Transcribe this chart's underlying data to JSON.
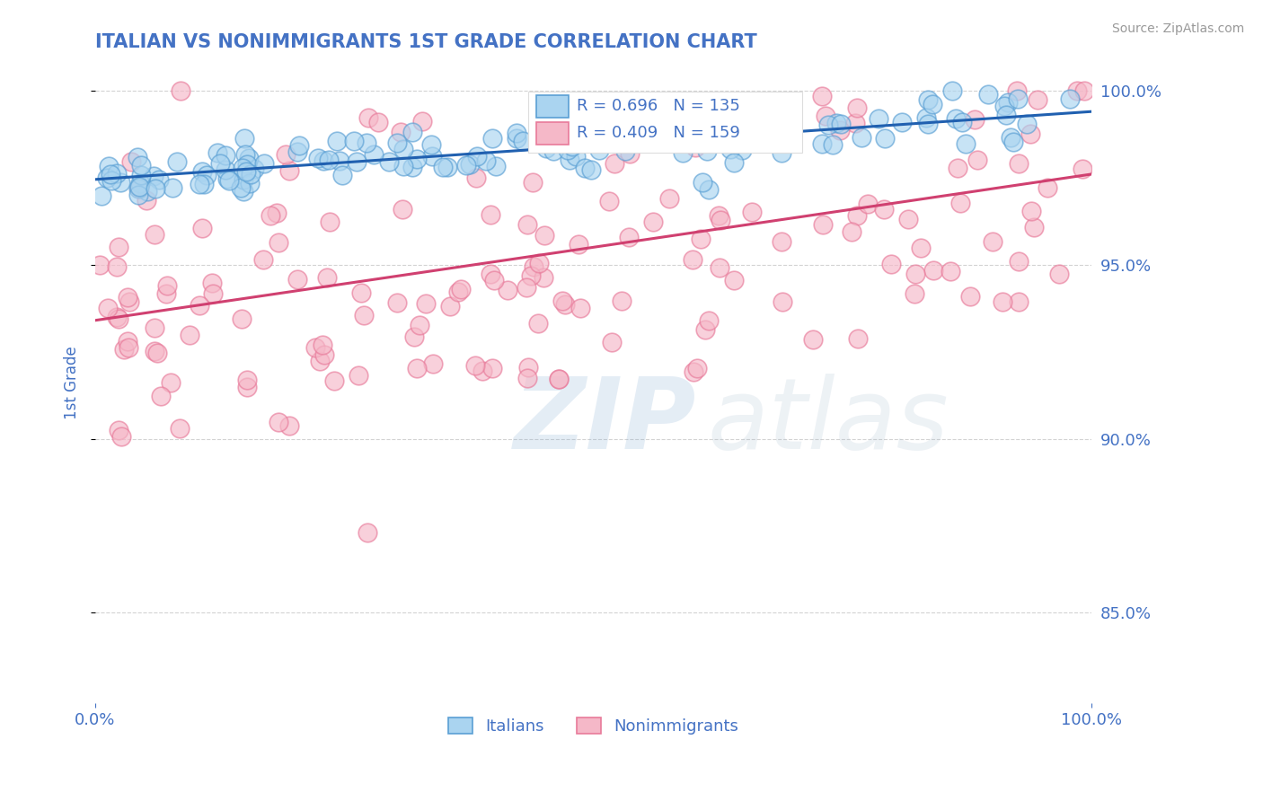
{
  "title": "ITALIAN VS NONIMMIGRANTS 1ST GRADE CORRELATION CHART",
  "source_text": "Source: ZipAtlas.com",
  "ylabel": "1st Grade",
  "watermark_zip": "ZIP",
  "watermark_atlas": "atlas",
  "background_color": "#ffffff",
  "title_color": "#4472c4",
  "tick_color": "#4472c4",
  "grid_color": "#c8c8c8",
  "xlim": [
    0.0,
    1.0
  ],
  "ylim": [
    0.824,
    1.008
  ],
  "yticks": [
    0.85,
    0.9,
    0.95,
    1.0
  ],
  "ytick_labels": [
    "85.0%",
    "90.0%",
    "95.0%",
    "100.0%"
  ],
  "xticks": [
    0.0,
    1.0
  ],
  "xtick_labels": [
    "0.0%",
    "100.0%"
  ],
  "legend_R_italian": "R = 0.696",
  "legend_N_italian": "N = 135",
  "legend_R_nonimm": "R = 0.409",
  "legend_N_nonimm": "N = 159",
  "italian_edge_color": "#5a9fd4",
  "italian_face_color": "#aad4f0",
  "nonimm_edge_color": "#e87a9a",
  "nonimm_face_color": "#f5b8c8",
  "italian_line_color": "#2060b0",
  "nonimm_line_color": "#d04070",
  "n_italian": 135,
  "n_nonimm": 159,
  "italian_trend_y0": 0.9745,
  "italian_trend_y1": 0.994,
  "nonimm_trend_y0": 0.934,
  "nonimm_trend_y1": 0.976,
  "seed": 12
}
